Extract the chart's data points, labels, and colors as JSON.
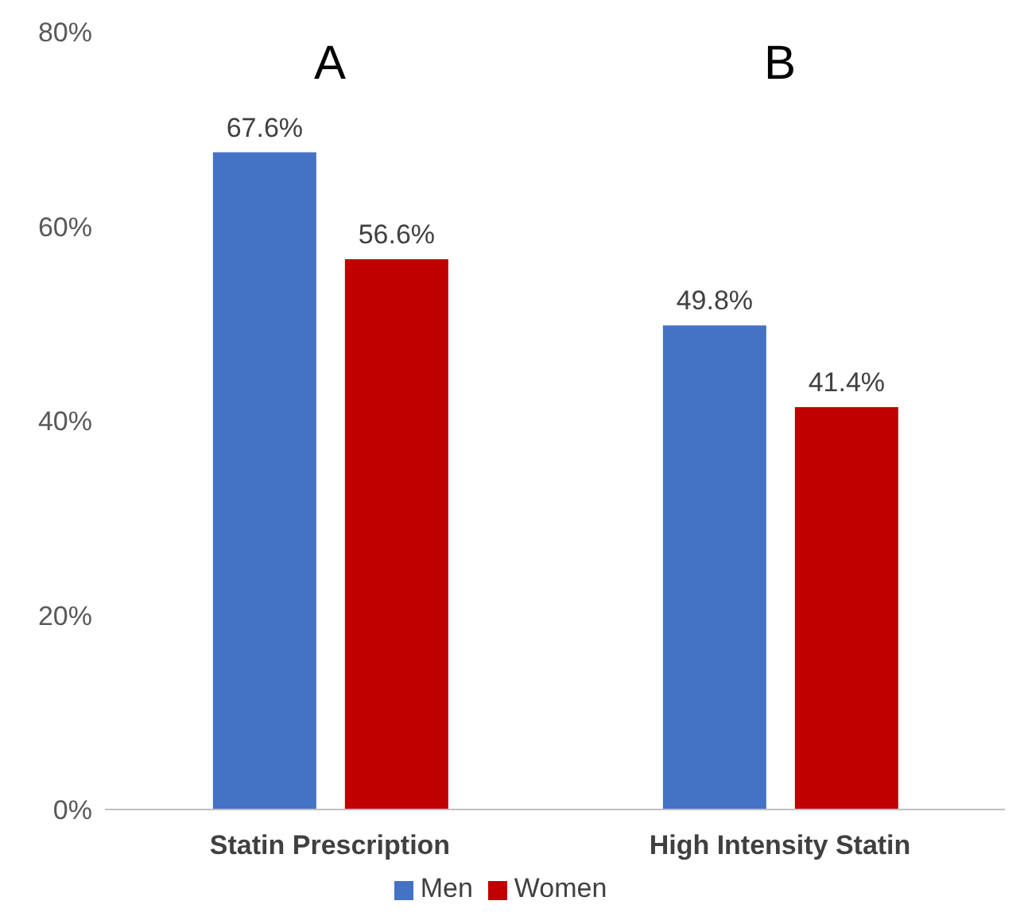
{
  "chart_data": {
    "type": "bar",
    "categories": [
      "Statin Prescription",
      "High Intensity Statin"
    ],
    "series": [
      {
        "name": "Men",
        "color": "#4472c4",
        "values": [
          67.6,
          49.8
        ],
        "value_labels": [
          "67.6%",
          "49.8%"
        ]
      },
      {
        "name": "Women",
        "color": "#c00000",
        "values": [
          56.6,
          41.4
        ],
        "value_labels": [
          "56.6%",
          "41.4%"
        ]
      }
    ],
    "ylim": [
      0,
      80
    ],
    "yticks": [
      {
        "value": 0,
        "label": "0%"
      },
      {
        "value": 20,
        "label": "20%"
      },
      {
        "value": 40,
        "label": "40%"
      },
      {
        "value": 60,
        "label": "60%"
      },
      {
        "value": 80,
        "label": "80%"
      }
    ],
    "annotations": [
      "A",
      "B"
    ],
    "grid": false,
    "legend": "bottom"
  }
}
